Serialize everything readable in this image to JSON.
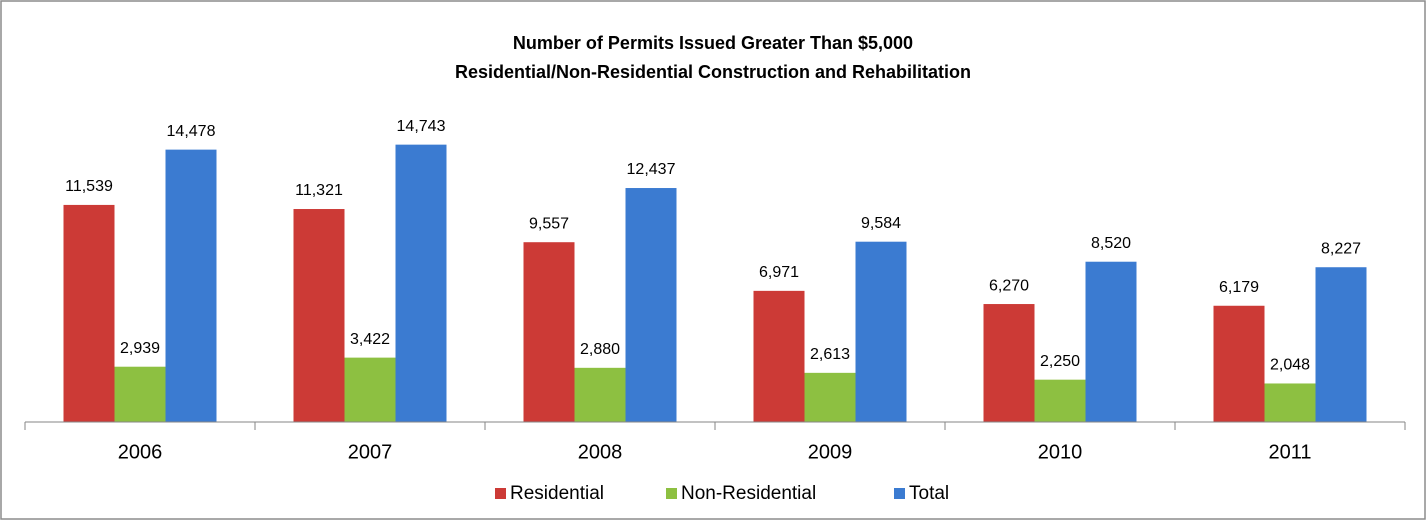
{
  "chart_data": {
    "type": "bar",
    "title": "Number of Permits Issued Greater Than $5,000",
    "subtitle": "Residential/Non-Residential Construction and Rehabilitation",
    "categories": [
      "2006",
      "2007",
      "2008",
      "2009",
      "2010",
      "2011"
    ],
    "series": [
      {
        "name": "Residential",
        "color": "#cc3a36",
        "values": [
          11539,
          11321,
          9557,
          6971,
          6270,
          6179
        ],
        "value_labels": [
          "11,539",
          "11,321",
          "9,557",
          "6,971",
          "6,270",
          "6,179"
        ]
      },
      {
        "name": "Non-Residential",
        "color": "#8dc041",
        "values": [
          2939,
          3422,
          2880,
          2613,
          2250,
          2048
        ],
        "value_labels": [
          "2,939",
          "3,422",
          "2,880",
          "2,613",
          "2,250",
          "2,048"
        ]
      },
      {
        "name": "Total",
        "color": "#3b7bd1",
        "values": [
          14478,
          14743,
          12437,
          9584,
          8520,
          8227
        ],
        "value_labels": [
          "14,478",
          "14,743",
          "12,437",
          "9,584",
          "8,520",
          "8,227"
        ]
      }
    ],
    "ylim": [
      0,
      16000
    ],
    "legend": "bottom"
  }
}
